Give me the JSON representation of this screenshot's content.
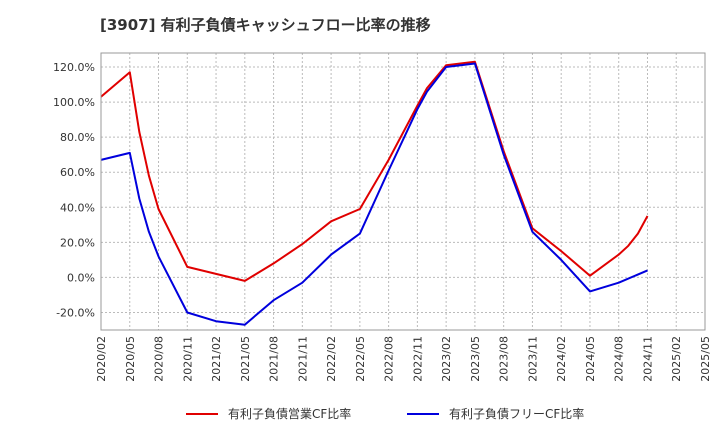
{
  "chart_data": {
    "type": "line",
    "title": "[3907]  有利子負債キャッシュフロー比率の推移",
    "x_ticks": [
      "2020/02",
      "2020/05",
      "2020/08",
      "2020/11",
      "2021/02",
      "2021/05",
      "2021/08",
      "2021/11",
      "2022/02",
      "2022/05",
      "2022/08",
      "2022/11",
      "2023/02",
      "2023/05",
      "2023/08",
      "2023/11",
      "2024/02",
      "2024/05",
      "2024/08",
      "2024/11",
      "2025/02",
      "2025/05"
    ],
    "y_ticks": [
      "-20.0%",
      "0.0%",
      "20.0%",
      "40.0%",
      "60.0%",
      "80.0%",
      "100.0%",
      "120.0%"
    ],
    "ylim": [
      -30,
      128
    ],
    "xlim": [
      "2020/02",
      "2025/05"
    ],
    "grid": true,
    "legend_position": "bottom",
    "series": [
      {
        "name": "有利子負債営業CF比率",
        "color": "#e00000",
        "points": [
          [
            "2020/02",
            103
          ],
          [
            "2020/05",
            117
          ],
          [
            "2020/06",
            83
          ],
          [
            "2020/07",
            58
          ],
          [
            "2020/08",
            39
          ],
          [
            "2020/11",
            6
          ],
          [
            "2021/02",
            2
          ],
          [
            "2021/05",
            -2
          ],
          [
            "2021/08",
            8
          ],
          [
            "2021/11",
            19
          ],
          [
            "2022/02",
            32
          ],
          [
            "2022/05",
            39
          ],
          [
            "2022/08",
            67
          ],
          [
            "2022/11",
            98
          ],
          [
            "2022/12",
            108
          ],
          [
            "2023/02",
            121
          ],
          [
            "2023/05",
            123
          ],
          [
            "2023/08",
            72
          ],
          [
            "2023/11",
            28
          ],
          [
            "2024/02",
            15
          ],
          [
            "2024/05",
            1
          ],
          [
            "2024/08",
            13
          ],
          [
            "2024/09",
            18
          ],
          [
            "2024/10",
            25
          ],
          [
            "2024/11",
            35
          ]
        ]
      },
      {
        "name": "有利子負債フリーCF比率",
        "color": "#0000dd",
        "points": [
          [
            "2020/02",
            67
          ],
          [
            "2020/05",
            71
          ],
          [
            "2020/06",
            45
          ],
          [
            "2020/07",
            26
          ],
          [
            "2020/08",
            12
          ],
          [
            "2020/11",
            -20
          ],
          [
            "2021/02",
            -25
          ],
          [
            "2021/05",
            -27
          ],
          [
            "2021/08",
            -13
          ],
          [
            "2021/11",
            -3
          ],
          [
            "2022/02",
            13
          ],
          [
            "2022/05",
            25
          ],
          [
            "2022/08",
            61
          ],
          [
            "2022/11",
            96
          ],
          [
            "2022/12",
            106
          ],
          [
            "2023/02",
            120
          ],
          [
            "2023/05",
            122
          ],
          [
            "2023/08",
            70
          ],
          [
            "2023/11",
            26
          ],
          [
            "2024/02",
            10
          ],
          [
            "2024/05",
            -8
          ],
          [
            "2024/08",
            -3
          ],
          [
            "2024/11",
            4
          ]
        ]
      }
    ]
  }
}
